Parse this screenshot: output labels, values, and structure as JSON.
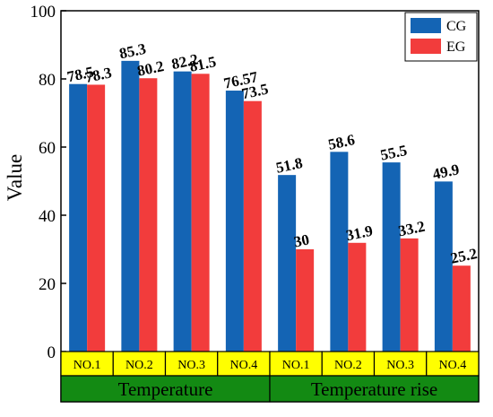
{
  "chart_data": {
    "type": "bar",
    "title": "",
    "ylabel": "Value",
    "xlabel": "",
    "ylim": [
      0,
      100
    ],
    "yticks": [
      "0",
      "20",
      "40",
      "60",
      "80",
      "100"
    ],
    "categories": [
      "NO.1",
      "NO.2",
      "NO.3",
      "NO.4",
      "NO.1",
      "NO.2",
      "NO.3",
      "NO.4"
    ],
    "groups": [
      {
        "label": "Temperature",
        "span": [
          0,
          3
        ]
      },
      {
        "label": "Temperature rise",
        "span": [
          4,
          7
        ]
      }
    ],
    "series": [
      {
        "name": "CG",
        "color": "#1464b4",
        "values": [
          78.5,
          85.3,
          82.2,
          76.57,
          51.8,
          58.6,
          55.5,
          49.9
        ],
        "labels": [
          "78.5",
          "85.3",
          "82.2",
          "76.57",
          "51.8",
          "58.6",
          "55.5",
          "49.9"
        ]
      },
      {
        "name": "EG",
        "color": "#f23c3c",
        "values": [
          78.3,
          80.2,
          81.5,
          73.5,
          30,
          31.9,
          33.2,
          25.2
        ],
        "labels": [
          "78.3",
          "80.2",
          "81.5",
          "73.5",
          "30",
          "31.9",
          "33.2",
          "25.2"
        ]
      }
    ],
    "legend_position": "top-right",
    "category_box_color": "#ffff00",
    "group_box_color": "#138a13",
    "grid": false
  }
}
